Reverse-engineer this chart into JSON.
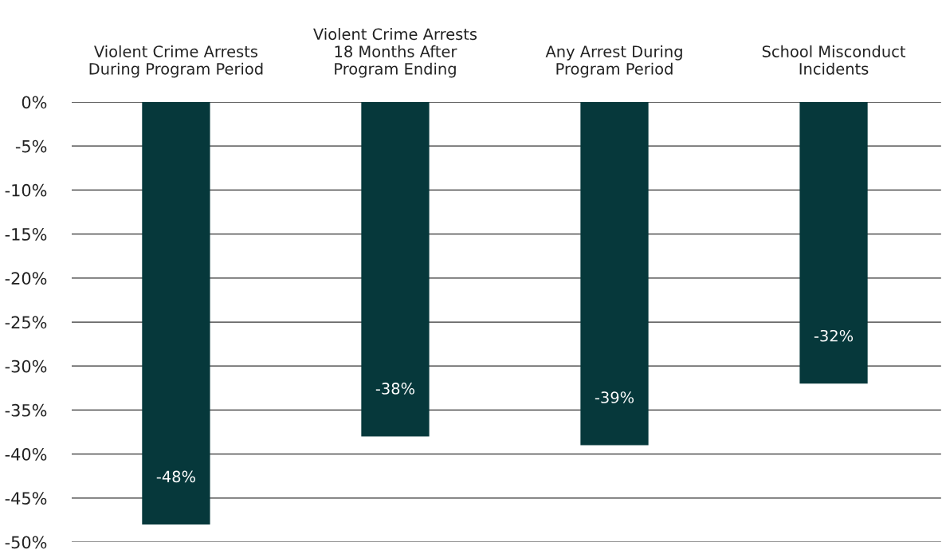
{
  "chart_data": {
    "type": "bar",
    "categories": [
      "Violent Crime Arrests\nDuring Program Period",
      "Violent Crime Arrests\n18 Months After\nProgram Ending",
      "Any Arrest During\nProgram Period",
      "School Misconduct\nIncidents"
    ],
    "values": [
      -48,
      -38,
      -39,
      -32
    ],
    "color": "#06383b",
    "value_labels": [
      "-48%",
      "-38%",
      "-39%",
      "-32%"
    ],
    "ylim": [
      -50,
      0
    ],
    "yticks": [
      {
        "value": 0,
        "label": "0%"
      },
      {
        "value": -5,
        "label": "-5%"
      },
      {
        "value": -10,
        "label": "-10%"
      },
      {
        "value": -15,
        "label": "-15%"
      },
      {
        "value": -20,
        "label": "-20%"
      },
      {
        "value": -25,
        "label": "-25%"
      },
      {
        "value": -30,
        "label": "-30%"
      },
      {
        "value": -35,
        "label": "-35%"
      },
      {
        "value": -40,
        "label": "-40%"
      },
      {
        "value": -45,
        "label": "-45%"
      },
      {
        "value": -50,
        "label": "-50%"
      }
    ],
    "grid": "y"
  }
}
